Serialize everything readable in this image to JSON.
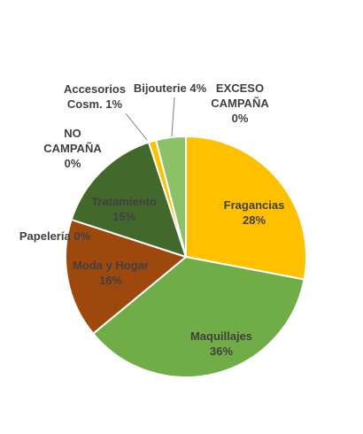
{
  "chart_data": {
    "type": "pie",
    "title": "",
    "slices": [
      {
        "name": "Fragancias",
        "value": 28,
        "label": "28%",
        "color": "#FFC000"
      },
      {
        "name": "Maquillajes",
        "value": 36,
        "label": "36%",
        "color": "#70AD47"
      },
      {
        "name": "Moda y Hogar",
        "value": 16,
        "label": "16%",
        "color": "#9E480E"
      },
      {
        "name": "Papelería",
        "value": 0,
        "label": "0%",
        "color": "#843C0C"
      },
      {
        "name": "Tratamiento",
        "value": 15,
        "label": "15%",
        "color": "#43682B"
      },
      {
        "name": "NO CAMPAÑA",
        "value": 0,
        "label": "0%",
        "color": "#636363"
      },
      {
        "name": "Accesorios Cosm.",
        "value": 1,
        "label": "1%",
        "color": "#FFC000"
      },
      {
        "name": "Bijouterie",
        "value": 4,
        "label": "4%",
        "color": "#8CC168"
      },
      {
        "name": "EXCESO CAMPAÑA",
        "value": 0,
        "label": "0%",
        "color": "#A9D18E"
      }
    ]
  }
}
